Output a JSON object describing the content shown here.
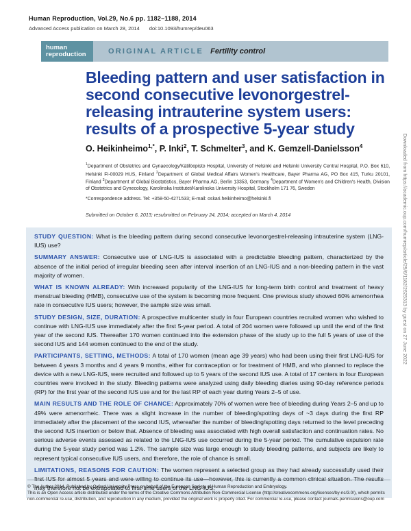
{
  "colors": {
    "title_blue": "#1e3f99",
    "abstract_heading_blue": "#2b51a8",
    "abstract_background": "#e1eaf2",
    "banner_logo_teal": "#5e92a2",
    "banner_light_blue": "#b1c4d0",
    "article_type_teal": "#49798f"
  },
  "journal_header": {
    "journal_line": "Human Reproduction, Vol.29, No.6 pp. 1182–1188, 2014",
    "access_line": "Advanced Access publication on March 28, 2014",
    "doi": "doi:10.1093/humrep/deu063"
  },
  "banner": {
    "logo_line1": "human",
    "logo_line2": "reproduction",
    "article_type": "ORIGINAL ARTICLE",
    "section": "Fertility control"
  },
  "title": "Bleeding pattern and user satisfaction in second consecutive levonorgestrel-releasing intrauterine system users: results of a prospective 5-year study",
  "authors": [
    {
      "name": "O. Heikinheimo",
      "sup": "1,*",
      "sep": ", "
    },
    {
      "name": "P. Inki",
      "sup": "2",
      "sep": ", "
    },
    {
      "name": "T. Schmelter",
      "sup": "3",
      "sep": ", and "
    },
    {
      "name": "K. Gemzell-Danielsson",
      "sup": "4",
      "sep": ""
    }
  ],
  "affiliations": [
    {
      "sup": "1",
      "text": "Department of Obstetrics and Gynaecology/Kätilöopisto Hospital, University of Helsinki and Helsinki University Central Hospital, P.O. Box 610, Helsinki FI-00029 HUS, Finland "
    },
    {
      "sup": "2",
      "text": "Department of Global Medical Affairs Women's Healthcare, Bayer Pharma AG, PO Box 415, Turku 20101, Finland "
    },
    {
      "sup": "3",
      "text": "Department of Global Biostatistics, Bayer Pharma AG, Berlin 13353, Germany "
    },
    {
      "sup": "4",
      "text": "Department of Women's and Children's Health, Division of Obstetrics and Gynecology, Karolinska Institutet/Karolinska University Hospital, Stockholm 171 76, Sweden"
    }
  ],
  "correspondence": "*Correspondence address. Tel: +358-50-4271533; E-mail: oskari.heikinheimo@helsinki.fi",
  "history": "Submitted on October 6, 2013; resubmitted on February 24, 2014; accepted on March 4, 2014",
  "abstract": {
    "sections": [
      {
        "label": "STUDY QUESTION:",
        "text": "What is the bleeding pattern during second consecutive levonorgestrel-releasing intrauterine system (LNG-IUS) use?"
      },
      {
        "label": "SUMMARY ANSWER:",
        "text": "Consecutive use of LNG-IUS is associated with a predictable bleeding pattern, characterized by the absence of the initial period of irregular bleeding seen after interval insertion of an LNG-IUS and a non-bleeding pattern in the vast majority of women."
      },
      {
        "label": "WHAT IS KNOWN ALREADY:",
        "text": "With increased popularity of the LNG-IUS for long-term birth control and treatment of heavy menstrual bleeding (HMB), consecutive use of the system is becoming more frequent. One previous study showed 60% amenorrhea rate in consecutive IUS users; however, the sample size was small."
      },
      {
        "label": "STUDY DESIGN, SIZE, DURATION:",
        "text": "A prospective multicenter study in four European countries recruited women who wished to continue with LNG-IUS use immediately after the first 5-year period. A total of 204 women were followed up until the end of the first year of the second IUS. Thereafter 170 women continued into the extension phase of the study up to the full 5 years of use of the second IUS and 144 women continued to the end of the study."
      },
      {
        "label": "PARTICIPANTS, SETTING, METHODS:",
        "text": "A total of 170 women (mean age 39 years) who had been using their first LNG-IUS for between 4 years 3 months and 4 years 9 months, either for contraception or for treatment of HMB, and who planned to replace the device with a new LNG-IUS, were recruited and followed up to 5 years of the second IUS use. A total of 17 centers in four European countries were involved in the study. Bleeding patterns were analyzed using daily bleeding diaries using 90-day reference periods (RP) for the first year of the second IUS use and for the last RP of each year during Years 2–5 of use."
      },
      {
        "label": "MAIN RESULTS AND THE ROLE OF CHANCE:",
        "text": "Approximately 70% of women were free of bleeding during Years 2–5 and up to 49% were amenorrheic. There was a slight increase in the number of bleeding/spotting days of ~3 days during the first RP immediately after the placement of the second IUS, whereafter the number of bleeding/spotting days returned to the level preceding the second IUS insertion or below that. Absence of bleeding was associated with high overall satisfaction and continuation rates. No serious adverse events assessed as related to the LNG-IUS use occurred during the 5-year period. The cumulative expulsion rate during the 5-year study period was 1.2%. The sample size was large enough to study bleeding patterns, and subjects are likely to represent typical consecutive IUS users, and therefore, the role of chance is small."
      },
      {
        "label": "LIMITATIONS, REASONS FOR CAUTION:",
        "text": "The women represent a selected group as they had already successfully used their first IUS for almost 5 years and were willing to continue its use—however, this is currently a common clinical situation. The results may therefore not be extrapolated to first-time users of the LNG-IUS."
      }
    ]
  },
  "footer": {
    "copyright": "© The Author 2014. Published by Oxford University Press on behalf of the European Society of Human Reproduction and Embryology.",
    "license": "This is an Open Access article distributed under the terms of the Creative Commons Attribution Non-Commercial License (http://creativecommons.org/licenses/by-nc/3.0/), which permits non-commercial re-use, distribution, and reproduction in any medium, provided the original work is properly cited. For commercial re-use, please contact journals.permissions@oup.com"
  },
  "sidebar": {
    "download_note": "Downloaded from https://academic.oup.com/humrep/article/29/6/1182/2625313 by guest on 27 June 2022"
  }
}
